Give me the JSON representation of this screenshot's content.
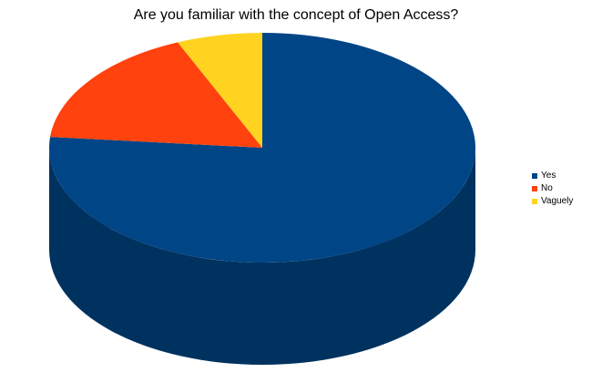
{
  "chart_data": {
    "type": "pie",
    "style": "3d",
    "title": "Are you familiar with the concept of Open Access?",
    "categories": [
      "Yes",
      "No",
      "Vaguely"
    ],
    "values": [
      76.5,
      17,
      6.5
    ],
    "unit": "percent (estimated share)",
    "colors": [
      "#004586",
      "#ff420e",
      "#ffd320"
    ],
    "legend_position": "right"
  }
}
